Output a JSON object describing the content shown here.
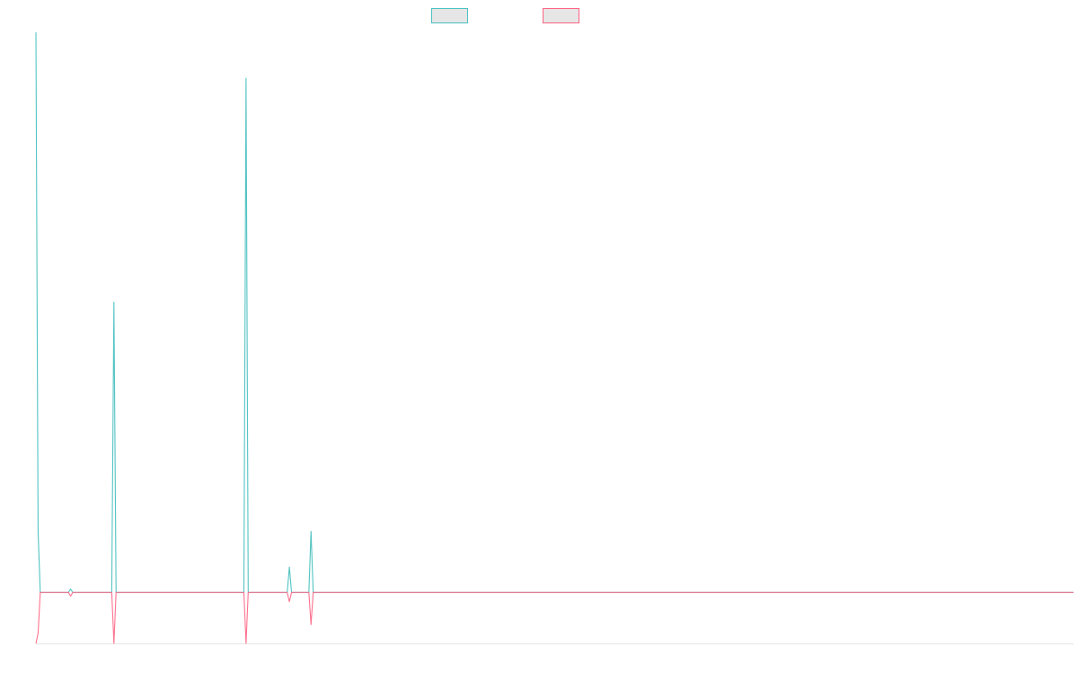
{
  "chart_data": {
    "type": "line",
    "title": "",
    "xlabel": "",
    "ylabel": "",
    "grid": false,
    "legend_position": "top-center",
    "x_count": 480,
    "ylim": [
      -1,
      11
    ],
    "series": [
      {
        "color": "#4bc0c0",
        "fill": "#e6e6e6",
        "points": [
          [
            0,
            11
          ],
          [
            1,
            1.2
          ],
          [
            2,
            0
          ],
          [
            15,
            0
          ],
          [
            16,
            0.07
          ],
          [
            17,
            0
          ],
          [
            35,
            0
          ],
          [
            36,
            5.7
          ],
          [
            37,
            0
          ],
          [
            96,
            0
          ],
          [
            97,
            10.1
          ],
          [
            98,
            0
          ],
          [
            116,
            0
          ],
          [
            117,
            0.5
          ],
          [
            118,
            0
          ],
          [
            126,
            0
          ],
          [
            127,
            1.2
          ],
          [
            128,
            0
          ],
          [
            479,
            0
          ]
        ]
      },
      {
        "color": "#ff6384",
        "fill": "#e6e6e6",
        "points": [
          [
            0,
            -1
          ],
          [
            1,
            -0.8
          ],
          [
            2,
            0
          ],
          [
            15,
            0
          ],
          [
            16,
            -0.07
          ],
          [
            17,
            0
          ],
          [
            35,
            0
          ],
          [
            36,
            -1
          ],
          [
            37,
            0
          ],
          [
            96,
            0
          ],
          [
            97,
            -1
          ],
          [
            98,
            0
          ],
          [
            116,
            0
          ],
          [
            117,
            -0.18
          ],
          [
            118,
            0
          ],
          [
            126,
            0
          ],
          [
            127,
            -0.63
          ],
          [
            128,
            0
          ],
          [
            479,
            0
          ]
        ]
      }
    ]
  }
}
